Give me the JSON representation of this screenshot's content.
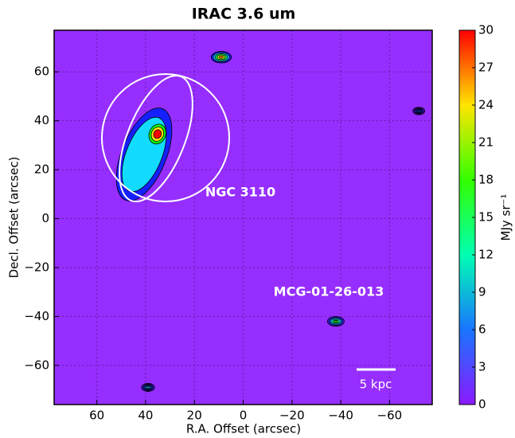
{
  "chart_data": {
    "type": "image",
    "title": "IRAC 3.6 um",
    "x_label": "R.A. Offset (arcsec)",
    "y_label": "Decl. Offset (arcsec)",
    "colorbar_label": "MJy sr⁻¹",
    "xlim": [
      77.5,
      -77.5
    ],
    "ylim": [
      -76,
      77
    ],
    "xticks": [
      60,
      40,
      20,
      0,
      {
        "value": -20,
        "label": "−20"
      },
      {
        "value": -40,
        "label": "−40"
      },
      {
        "value": -60,
        "label": "−60"
      }
    ],
    "yticks": [
      60,
      40,
      20,
      0,
      {
        "value": -20,
        "label": "−20"
      },
      {
        "value": -40,
        "label": "−40"
      },
      {
        "value": -60,
        "label": "−60"
      }
    ],
    "clim": [
      0,
      30
    ],
    "cticks": [
      0,
      3,
      6,
      9,
      12,
      15,
      18,
      21,
      24,
      27,
      30
    ],
    "grid": true,
    "sources": [
      {
        "x": 38,
        "y": 36,
        "peak": 30
      },
      {
        "x": 9,
        "y": 66,
        "peak": 27
      },
      {
        "x": -38,
        "y": -42,
        "peak": 18
      },
      {
        "x": 39,
        "y": -69,
        "peak": 9
      },
      {
        "x": -72,
        "y": 44,
        "peak": 6
      }
    ],
    "annotations": [
      "NGC 3110",
      "MCG-01-26-013",
      "5 kpc"
    ]
  }
}
